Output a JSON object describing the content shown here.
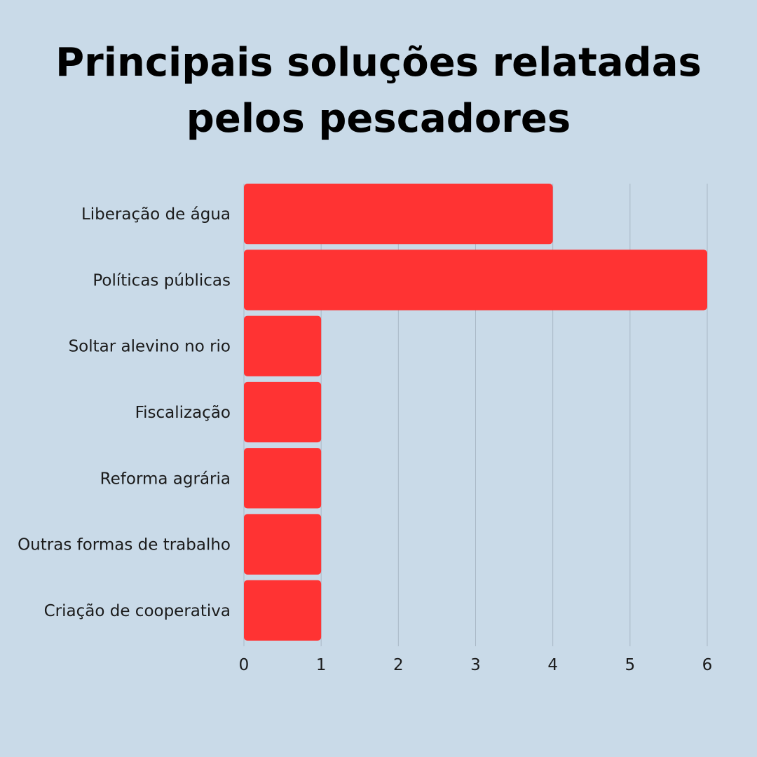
{
  "title": {
    "line1": "Principais soluções relatadas",
    "line2": "pelos pescadores"
  },
  "colors": {
    "background": "#c9dae8",
    "bar": "#ff3333",
    "grid": "#a9b8c6",
    "text": "#1a1a1a"
  },
  "chart_data": {
    "type": "bar",
    "orientation": "horizontal",
    "title": "Principais soluções relatadas pelos pescadores",
    "categories": [
      "Liberação de água",
      "Políticas públicas",
      "Soltar alevino no rio",
      "Fiscalização",
      "Reforma agrária",
      "Outras formas de trabalho",
      "Criação de cooperativa"
    ],
    "values": [
      4,
      6,
      1,
      1,
      1,
      1,
      1
    ],
    "xlim": [
      0,
      6
    ],
    "xticks": [
      "0",
      "1",
      "2",
      "3",
      "4",
      "5",
      "6"
    ],
    "xlabel": "",
    "ylabel": "",
    "grid": true
  }
}
